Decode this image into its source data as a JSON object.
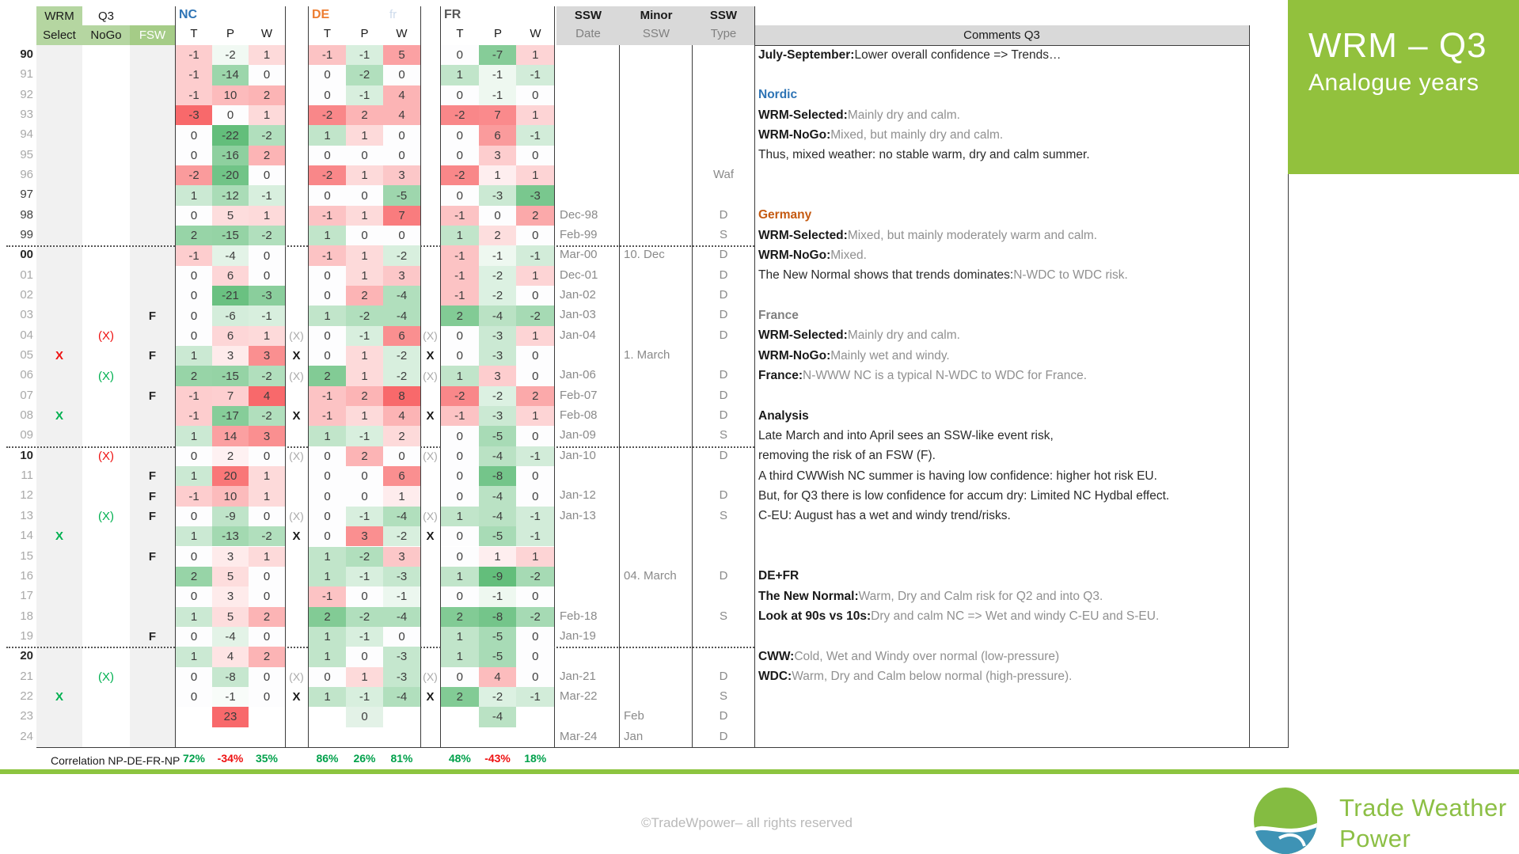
{
  "header": {
    "wrm": "WRM",
    "q3": "Q3",
    "select": "Select",
    "nogo": "NoGo",
    "fsw": "FSW",
    "nc": "NC",
    "de": "DE",
    "fr": "FR",
    "ghost": "fr",
    "t": "T",
    "p": "P",
    "w": "W",
    "ssw_a": "SSW",
    "date": "Date",
    "minor": "Minor",
    "ssw_b": "SSW",
    "ssw_c": "SSW",
    "type": "Type",
    "comments": "Comments Q3"
  },
  "colors": {
    "heat_red": "#F8696B",
    "heat_green": "#63BE7B",
    "accent_green": "#92C13D",
    "brand_green": "#8CBF45",
    "brand_blue": "#3E93B5"
  },
  "scales": {
    "nc": [
      3,
      22,
      4
    ],
    "de": [
      2.5,
      4,
      8
    ],
    "fr": [
      2.5,
      9,
      3.5
    ]
  },
  "rows": [
    {
      "y": "90",
      "d": 2,
      "sel": "",
      "selc": "",
      "nogo": "",
      "nogoc": "",
      "fsw": "",
      "nc": [
        -1,
        -2,
        1
      ],
      "m1": "",
      "de": [
        -1,
        -1,
        5
      ],
      "m2": "",
      "fr": [
        0,
        -7,
        1
      ],
      "date": "",
      "minor": "",
      "type": ""
    },
    {
      "y": "91",
      "d": 0,
      "sel": "",
      "selc": "",
      "nogo": "",
      "nogoc": "",
      "fsw": "",
      "nc": [
        -1,
        -14,
        0
      ],
      "m1": "",
      "de": [
        0,
        -2,
        0
      ],
      "m2": "",
      "fr": [
        1,
        -1,
        -1
      ],
      "date": "",
      "minor": "",
      "type": ""
    },
    {
      "y": "92",
      "d": 0,
      "sel": "",
      "selc": "",
      "nogo": "",
      "nogoc": "",
      "fsw": "",
      "nc": [
        -1,
        10,
        2
      ],
      "m1": "",
      "de": [
        0,
        -1,
        4
      ],
      "m2": "",
      "fr": [
        0,
        -1,
        0
      ],
      "date": "",
      "minor": "",
      "type": ""
    },
    {
      "y": "93",
      "d": 0,
      "sel": "",
      "selc": "",
      "nogo": "",
      "nogoc": "",
      "fsw": "",
      "nc": [
        -3,
        0,
        1
      ],
      "m1": "",
      "de": [
        -2,
        2,
        4
      ],
      "m2": "",
      "fr": [
        -2,
        7,
        1
      ],
      "date": "",
      "minor": "",
      "type": ""
    },
    {
      "y": "94",
      "d": 0,
      "sel": "",
      "selc": "",
      "nogo": "",
      "nogoc": "",
      "fsw": "",
      "nc": [
        0,
        -22,
        -2
      ],
      "m1": "",
      "de": [
        1,
        1,
        0
      ],
      "m2": "",
      "fr": [
        0,
        6,
        -1
      ],
      "date": "",
      "minor": "",
      "type": ""
    },
    {
      "y": "95",
      "d": 0,
      "sel": "",
      "selc": "",
      "nogo": "",
      "nogoc": "",
      "fsw": "",
      "nc": [
        0,
        -16,
        2
      ],
      "m1": "",
      "de": [
        0,
        0,
        0
      ],
      "m2": "",
      "fr": [
        0,
        3,
        0
      ],
      "date": "",
      "minor": "",
      "type": ""
    },
    {
      "y": "96",
      "d": 0,
      "sel": "",
      "selc": "",
      "nogo": "",
      "nogoc": "",
      "fsw": "",
      "nc": [
        -2,
        -20,
        0
      ],
      "m1": "",
      "de": [
        -2,
        1,
        3
      ],
      "m2": "",
      "fr": [
        -2,
        1,
        1
      ],
      "date": "",
      "minor": "",
      "type": "Waf"
    },
    {
      "y": "97",
      "d": 1,
      "sel": "",
      "selc": "",
      "nogo": "",
      "nogoc": "",
      "fsw": "",
      "nc": [
        1,
        -12,
        -1
      ],
      "m1": "",
      "de": [
        0,
        0,
        -5
      ],
      "m2": "",
      "fr": [
        0,
        -3,
        -3
      ],
      "date": "",
      "minor": "",
      "type": ""
    },
    {
      "y": "98",
      "d": 1,
      "sel": "",
      "selc": "",
      "nogo": "",
      "nogoc": "",
      "fsw": "",
      "nc": [
        0,
        5,
        1
      ],
      "m1": "",
      "de": [
        -1,
        1,
        7
      ],
      "m2": "",
      "fr": [
        -1,
        0,
        2
      ],
      "date": "Dec-98",
      "minor": "",
      "type": "D"
    },
    {
      "y": "99",
      "d": 1,
      "sel": "",
      "selc": "",
      "nogo": "",
      "nogoc": "",
      "fsw": "",
      "nc": [
        2,
        -15,
        -2
      ],
      "m1": "",
      "de": [
        1,
        0,
        0
      ],
      "m2": "",
      "fr": [
        1,
        2,
        0
      ],
      "date": "Feb-99",
      "minor": "",
      "type": "S"
    },
    {
      "y": "00",
      "d": 2,
      "sel": "",
      "selc": "",
      "nogo": "",
      "nogoc": "",
      "fsw": "",
      "nc": [
        -1,
        -4,
        0
      ],
      "m1": "",
      "de": [
        -1,
        1,
        -2
      ],
      "m2": "",
      "fr": [
        -1,
        -1,
        -1
      ],
      "date": "Mar-00",
      "minor": "10. Dec",
      "type": "D"
    },
    {
      "y": "01",
      "d": 0,
      "sel": "",
      "selc": "",
      "nogo": "",
      "nogoc": "",
      "fsw": "",
      "nc": [
        0,
        6,
        0
      ],
      "m1": "",
      "de": [
        0,
        1,
        3
      ],
      "m2": "",
      "fr": [
        -1,
        -2,
        1
      ],
      "date": "Dec-01",
      "minor": "",
      "type": "D"
    },
    {
      "y": "02",
      "d": 0,
      "sel": "",
      "selc": "",
      "nogo": "",
      "nogoc": "",
      "fsw": "",
      "nc": [
        0,
        -21,
        -3
      ],
      "m1": "",
      "de": [
        0,
        2,
        -4
      ],
      "m2": "",
      "fr": [
        -1,
        -2,
        0
      ],
      "date": "Jan-02",
      "minor": "",
      "type": "D"
    },
    {
      "y": "03",
      "d": 0,
      "sel": "",
      "selc": "",
      "nogo": "",
      "nogoc": "",
      "fsw": "F",
      "nc": [
        0,
        -6,
        -1
      ],
      "m1": "",
      "de": [
        1,
        -2,
        -4
      ],
      "m2": "",
      "fr": [
        2,
        -4,
        -2
      ],
      "date": "Jan-03",
      "minor": "",
      "type": "D"
    },
    {
      "y": "04",
      "d": 0,
      "sel": "",
      "selc": "",
      "nogo": "(X)",
      "nogoc": "r",
      "fsw": "",
      "nc": [
        0,
        6,
        1
      ],
      "m1": "(X)",
      "de": [
        0,
        -1,
        6
      ],
      "m2": "(X)",
      "fr": [
        0,
        -3,
        1
      ],
      "date": "Jan-04",
      "minor": "",
      "type": "D"
    },
    {
      "y": "05",
      "d": 0,
      "sel": "X",
      "selc": "r",
      "nogo": "",
      "nogoc": "",
      "fsw": "F",
      "nc": [
        1,
        3,
        3
      ],
      "m1": "X",
      "de": [
        0,
        1,
        -2
      ],
      "m2": "X",
      "fr": [
        0,
        -3,
        0
      ],
      "date": "",
      "minor": "1. March",
      "type": ""
    },
    {
      "y": "06",
      "d": 0,
      "sel": "",
      "selc": "",
      "nogo": "(X)",
      "nogoc": "g",
      "fsw": "",
      "nc": [
        2,
        -15,
        -2
      ],
      "m1": "(X)",
      "de": [
        2,
        1,
        -2
      ],
      "m2": "(X)",
      "fr": [
        1,
        3,
        0
      ],
      "date": "Jan-06",
      "minor": "",
      "type": "D"
    },
    {
      "y": "07",
      "d": 0,
      "sel": "",
      "selc": "",
      "nogo": "",
      "nogoc": "",
      "fsw": "F",
      "nc": [
        -1,
        7,
        4
      ],
      "m1": "",
      "de": [
        -1,
        2,
        8
      ],
      "m2": "",
      "fr": [
        -2,
        -2,
        2
      ],
      "date": "Feb-07",
      "minor": "",
      "type": "D"
    },
    {
      "y": "08",
      "d": 0,
      "sel": "X",
      "selc": "g",
      "nogo": "",
      "nogoc": "",
      "fsw": "",
      "nc": [
        -1,
        -17,
        -2
      ],
      "m1": "X",
      "de": [
        -1,
        1,
        4
      ],
      "m2": "X",
      "fr": [
        -1,
        -3,
        1
      ],
      "date": "Feb-08",
      "minor": "",
      "type": "D"
    },
    {
      "y": "09",
      "d": 0,
      "sel": "",
      "selc": "",
      "nogo": "",
      "nogoc": "",
      "fsw": "",
      "nc": [
        1,
        14,
        3
      ],
      "m1": "",
      "de": [
        1,
        -1,
        2
      ],
      "m2": "",
      "fr": [
        0,
        -5,
        0
      ],
      "date": "Jan-09",
      "minor": "",
      "type": "S"
    },
    {
      "y": "10",
      "d": 2,
      "sel": "",
      "selc": "",
      "nogo": "(X)",
      "nogoc": "r",
      "fsw": "",
      "nc": [
        0,
        2,
        0
      ],
      "m1": "(X)",
      "de": [
        0,
        2,
        0
      ],
      "m2": "(X)",
      "fr": [
        0,
        -4,
        -1
      ],
      "date": "Jan-10",
      "minor": "",
      "type": "D"
    },
    {
      "y": "11",
      "d": 0,
      "sel": "",
      "selc": "",
      "nogo": "",
      "nogoc": "",
      "fsw": "F",
      "nc": [
        1,
        20,
        1
      ],
      "m1": "",
      "de": [
        0,
        0,
        6
      ],
      "m2": "",
      "fr": [
        0,
        -8,
        0
      ],
      "date": "",
      "minor": "",
      "type": ""
    },
    {
      "y": "12",
      "d": 0,
      "sel": "",
      "selc": "",
      "nogo": "",
      "nogoc": "",
      "fsw": "F",
      "nc": [
        -1,
        10,
        1
      ],
      "m1": "",
      "de": [
        0,
        0,
        1
      ],
      "m2": "",
      "fr": [
        0,
        -4,
        0
      ],
      "date": "Jan-12",
      "minor": "",
      "type": "D"
    },
    {
      "y": "13",
      "d": 0,
      "sel": "",
      "selc": "",
      "nogo": "(X)",
      "nogoc": "g",
      "fsw": "F",
      "nc": [
        0,
        -9,
        0
      ],
      "m1": "(X)",
      "de": [
        0,
        -1,
        -4
      ],
      "m2": "(X)",
      "fr": [
        1,
        -4,
        -1
      ],
      "date": "Jan-13",
      "minor": "",
      "type": "S"
    },
    {
      "y": "14",
      "d": 0,
      "sel": "X",
      "selc": "g",
      "nogo": "",
      "nogoc": "",
      "fsw": "",
      "nc": [
        1,
        -13,
        -2
      ],
      "m1": "X",
      "de": [
        0,
        3,
        -2
      ],
      "m2": "X",
      "fr": [
        0,
        -5,
        -1
      ],
      "date": "",
      "minor": "",
      "type": ""
    },
    {
      "y": "15",
      "d": 0,
      "sel": "",
      "selc": "",
      "nogo": "",
      "nogoc": "",
      "fsw": "F",
      "nc": [
        0,
        3,
        1
      ],
      "m1": "",
      "de": [
        1,
        -2,
        3
      ],
      "m2": "",
      "fr": [
        0,
        1,
        1
      ],
      "date": "",
      "minor": "",
      "type": ""
    },
    {
      "y": "16",
      "d": 0,
      "sel": "",
      "selc": "",
      "nogo": "",
      "nogoc": "",
      "fsw": "",
      "nc": [
        2,
        5,
        0
      ],
      "m1": "",
      "de": [
        1,
        -1,
        -3
      ],
      "m2": "",
      "fr": [
        1,
        -9,
        -2
      ],
      "date": "",
      "minor": "04. March",
      "type": "D"
    },
    {
      "y": "17",
      "d": 0,
      "sel": "",
      "selc": "",
      "nogo": "",
      "nogoc": "",
      "fsw": "",
      "nc": [
        0,
        3,
        0
      ],
      "m1": "",
      "de": [
        -1,
        0,
        -1
      ],
      "m2": "",
      "fr": [
        0,
        -1,
        0
      ],
      "date": "",
      "minor": "",
      "type": ""
    },
    {
      "y": "18",
      "d": 0,
      "sel": "",
      "selc": "",
      "nogo": "",
      "nogoc": "",
      "fsw": "",
      "nc": [
        1,
        5,
        2
      ],
      "m1": "",
      "de": [
        2,
        -2,
        -4
      ],
      "m2": "",
      "fr": [
        2,
        -8,
        -2
      ],
      "date": "Feb-18",
      "minor": "",
      "type": "S"
    },
    {
      "y": "19",
      "d": 0,
      "sel": "",
      "selc": "",
      "nogo": "",
      "nogoc": "",
      "fsw": "F",
      "nc": [
        0,
        -4,
        0
      ],
      "m1": "",
      "de": [
        1,
        -1,
        0
      ],
      "m2": "",
      "fr": [
        1,
        -5,
        0
      ],
      "date": "Jan-19",
      "minor": "",
      "type": ""
    },
    {
      "y": "20",
      "d": 2,
      "sel": "",
      "selc": "",
      "nogo": "",
      "nogoc": "",
      "fsw": "",
      "nc": [
        1,
        4,
        2
      ],
      "m1": "",
      "de": [
        1,
        0,
        -3
      ],
      "m2": "",
      "fr": [
        1,
        -5,
        0
      ],
      "date": "",
      "minor": "",
      "type": ""
    },
    {
      "y": "21",
      "d": 0,
      "sel": "",
      "selc": "",
      "nogo": "(X)",
      "nogoc": "g",
      "fsw": "",
      "nc": [
        0,
        -8,
        0
      ],
      "m1": "(X)",
      "de": [
        0,
        1,
        -3
      ],
      "m2": "(X)",
      "fr": [
        0,
        4,
        0
      ],
      "date": "Jan-21",
      "minor": "",
      "type": "D"
    },
    {
      "y": "22",
      "d": 0,
      "sel": "X",
      "selc": "g",
      "nogo": "",
      "nogoc": "",
      "fsw": "",
      "nc": [
        0,
        -1,
        0
      ],
      "m1": "X",
      "de": [
        1,
        -1,
        -4
      ],
      "m2": "X",
      "fr": [
        2,
        -2,
        -1
      ],
      "date": "Mar-22",
      "minor": "",
      "type": "S"
    },
    {
      "y": "23",
      "d": 0,
      "sel": "",
      "selc": "",
      "nogo": "",
      "nogoc": "",
      "fsw": "",
      "nc": [
        null,
        23,
        null
      ],
      "m1": "",
      "de": [
        null,
        0,
        null
      ],
      "m2": "",
      "fr": [
        null,
        -4,
        null
      ],
      "date": "",
      "minor": "Feb",
      "type": "D",
      "bgo": {
        "de_1": "#e3f2e7"
      }
    },
    {
      "y": "24",
      "d": 0,
      "sel": "",
      "selc": "",
      "nogo": "",
      "nogoc": "",
      "fsw": "",
      "nc": [
        null,
        null,
        null
      ],
      "m1": "",
      "de": [
        null,
        null,
        null
      ],
      "m2": "",
      "fr": [
        null,
        null,
        null
      ],
      "date": "Mar-24",
      "minor": "Jan",
      "type": "D"
    }
  ],
  "correlation": {
    "label": "Correlation NP-DE-FR-NP",
    "nc": [
      "72%",
      "-34%",
      "35%"
    ],
    "de": [
      "86%",
      "26%",
      "81%"
    ],
    "fr": [
      "48%",
      "-43%",
      "18%"
    ]
  },
  "comments": [
    [
      [
        "b",
        "July-September:"
      ],
      [
        "d",
        " Lower overall confidence => Trends…"
      ]
    ],
    [],
    [
      [
        "cblue",
        "Nordic"
      ]
    ],
    [
      [
        "b",
        "WRM-Selected:"
      ],
      [
        "g",
        " Mainly dry and calm."
      ]
    ],
    [
      [
        "b",
        "WRM-NoGo:"
      ],
      [
        "g",
        " Mixed, but mainly dry and calm."
      ]
    ],
    [
      [
        "d",
        "Thus, mixed weather: no stable warm, dry and calm summer."
      ]
    ],
    [],
    [],
    [
      [
        "cor",
        "Germany"
      ]
    ],
    [
      [
        "b",
        "WRM-Selected:"
      ],
      [
        "g",
        " Mixed, but mainly moderately warm and calm."
      ]
    ],
    [
      [
        "b",
        "WRM-NoGo:"
      ],
      [
        "g",
        " Mixed."
      ]
    ],
    [
      [
        "d",
        "The New Normal shows that trends dominates:"
      ],
      [
        "g",
        " N-WDC to WDC risk."
      ]
    ],
    [],
    [
      [
        "cgb",
        "France"
      ]
    ],
    [
      [
        "b",
        "WRM-Selected:"
      ],
      [
        "g",
        " Mainly dry and calm."
      ]
    ],
    [
      [
        "b",
        "WRM-NoGo:"
      ],
      [
        "g",
        " Mainly wet and windy."
      ]
    ],
    [
      [
        "b",
        "France:"
      ],
      [
        "g",
        " N-WWW NC is a typical N-WDC to WDC for France."
      ]
    ],
    [],
    [
      [
        "b",
        "Analysis"
      ]
    ],
    [
      [
        "d",
        "Late March and into April sees an SSW-like event risk,"
      ]
    ],
    [
      [
        "d",
        "removing the risk of an FSW (F)."
      ]
    ],
    [
      [
        "d",
        "A third CWWish NC summer is having low confidence: higher hot risk EU."
      ]
    ],
    [
      [
        "d",
        "But, for Q3 there is low confidence for accum dry: Limited NC Hydbal effect."
      ]
    ],
    [
      [
        "d",
        "C-EU: August has a wet and windy trend/risks."
      ]
    ],
    [],
    [],
    [
      [
        "b",
        "DE+FR"
      ]
    ],
    [
      [
        "b",
        "The New Normal:"
      ],
      [
        "g",
        " Warm, Dry and Calm risk for Q2 and into Q3."
      ]
    ],
    [
      [
        "b",
        "Look at 90s vs 10s:"
      ],
      [
        "g",
        " Dry and calm NC => Wet and windy C-EU and S-EU."
      ]
    ],
    [],
    [
      [
        "b",
        "CWW:"
      ],
      [
        "g",
        " Cold, Wet and Windy over normal (low-pressure)"
      ]
    ],
    [
      [
        "b",
        "WDC:"
      ],
      [
        "g",
        " Warm, Dry and Calm below normal (high-pressure)."
      ]
    ]
  ],
  "panel": {
    "title": "WRM – Q3",
    "subtitle": "Analogue years"
  },
  "footer": {
    "copyright": "©TradeWpower– all rights reserved",
    "brand_line1": "Trade Weather",
    "brand_line2": "Power"
  }
}
